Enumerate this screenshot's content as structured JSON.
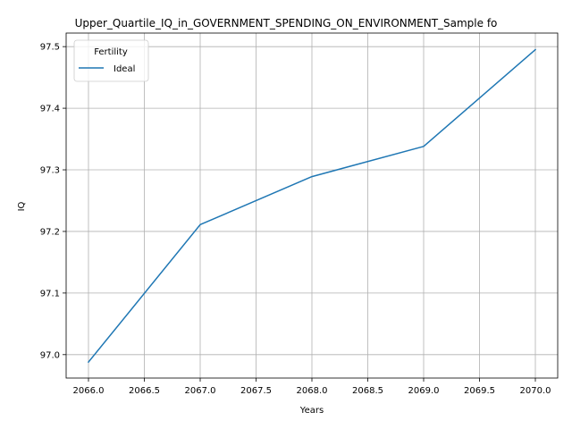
{
  "chart_data": {
    "type": "line",
    "title": "Upper_Quartile_IQ_in_GOVERNMENT_SPENDING_ON_ENVIRONMENT_Sample fo",
    "xlabel": "Years",
    "ylabel": "IQ",
    "xlim": [
      2065.8,
      2070.2
    ],
    "ylim": [
      96.962,
      97.522
    ],
    "xticks": [
      "2066.0",
      "2066.5",
      "2067.0",
      "2067.5",
      "2068.0",
      "2068.5",
      "2069.0",
      "2069.5",
      "2070.0"
    ],
    "yticks": [
      "97.0",
      "97.1",
      "97.2",
      "97.3",
      "97.4",
      "97.5"
    ],
    "grid": true,
    "legend": {
      "title": "Fertility",
      "placement": "top-left"
    },
    "series": [
      {
        "name": "Ideal",
        "color": "#1f77b4",
        "x": [
          2066,
          2067,
          2068,
          2069,
          2070
        ],
        "y": [
          96.988,
          97.211,
          97.289,
          97.338,
          97.495
        ]
      }
    ]
  }
}
